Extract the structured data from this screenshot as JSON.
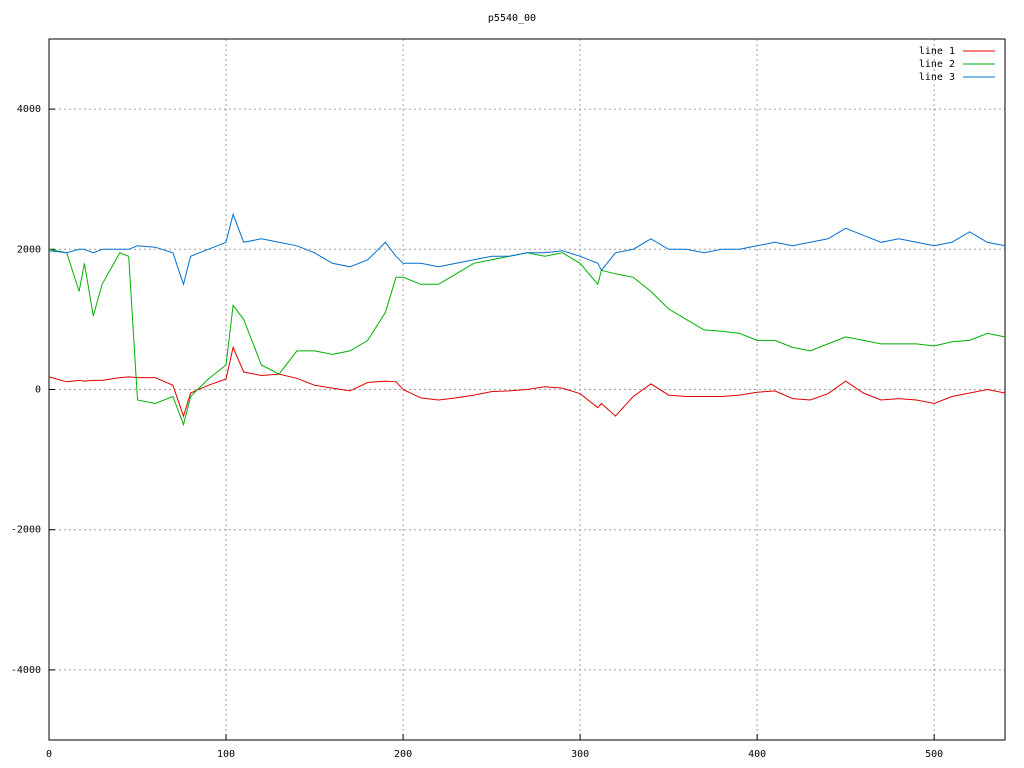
{
  "chart_data": {
    "type": "line",
    "title": "p5540_00",
    "x": [
      0,
      10,
      17,
      20,
      25,
      30,
      40,
      45,
      50,
      60,
      70,
      76,
      80,
      90,
      100,
      104,
      110,
      120,
      130,
      140,
      150,
      160,
      170,
      180,
      190,
      196,
      200,
      210,
      220,
      230,
      240,
      250,
      260,
      270,
      280,
      290,
      300,
      310,
      312,
      320,
      330,
      340,
      350,
      360,
      370,
      380,
      390,
      400,
      410,
      420,
      430,
      440,
      450,
      460,
      470,
      480,
      490,
      500,
      510,
      520,
      530,
      540
    ],
    "series": [
      {
        "name": "line 1",
        "color": "#e00000",
        "values": [
          180,
          110,
          130,
          120,
          130,
          130,
          170,
          180,
          170,
          170,
          60,
          -380,
          -50,
          60,
          150,
          600,
          250,
          200,
          220,
          160,
          60,
          20,
          -20,
          100,
          120,
          110,
          0,
          -120,
          -150,
          -120,
          -80,
          -30,
          -20,
          0,
          40,
          20,
          -60,
          -260,
          -200,
          -380,
          -100,
          80,
          -80,
          -100,
          -100,
          -100,
          -80,
          -40,
          -20,
          -130,
          -150,
          -60,
          120,
          -50,
          -150,
          -130,
          -150,
          -200,
          -100,
          -50,
          0,
          -50
        ]
      },
      {
        "name": "line 2",
        "color": "#00b000",
        "values": [
          2000,
          1950,
          1400,
          1800,
          1050,
          1500,
          1950,
          1900,
          -150,
          -200,
          -100,
          -500,
          -100,
          150,
          350,
          1200,
          1000,
          350,
          220,
          550,
          550,
          500,
          550,
          700,
          1100,
          1600,
          1600,
          1500,
          1500,
          1650,
          1800,
          1850,
          1900,
          1950,
          1900,
          1950,
          1800,
          1500,
          1700,
          1650,
          1600,
          1400,
          1150,
          1000,
          850,
          830,
          800,
          700,
          700,
          600,
          550,
          650,
          750,
          700,
          650,
          650,
          650,
          620,
          680,
          700,
          800,
          750
        ]
      },
      {
        "name": "line 3",
        "color": "#0070d0",
        "values": [
          1980,
          1950,
          2000,
          2000,
          1950,
          2000,
          2000,
          2000,
          2050,
          2030,
          1950,
          1500,
          1900,
          2000,
          2100,
          2500,
          2100,
          2150,
          2100,
          2050,
          1950,
          1800,
          1750,
          1850,
          2100,
          1900,
          1800,
          1800,
          1750,
          1800,
          1850,
          1900,
          1900,
          1950,
          1950,
          1980,
          1900,
          1800,
          1700,
          1950,
          2000,
          2150,
          2000,
          2000,
          1950,
          2000,
          2000,
          2050,
          2100,
          2050,
          2100,
          2150,
          2300,
          2200,
          2100,
          2150,
          2100,
          2050,
          2100,
          2250,
          2100,
          2050
        ]
      }
    ],
    "xlim": [
      0,
      540
    ],
    "xticks": [
      0,
      100,
      200,
      300,
      400,
      500
    ],
    "ylim": [
      -5000,
      5000
    ],
    "yticks": [
      -4000,
      -2000,
      0,
      2000,
      4000
    ],
    "grid": true,
    "legend": "top-right"
  }
}
